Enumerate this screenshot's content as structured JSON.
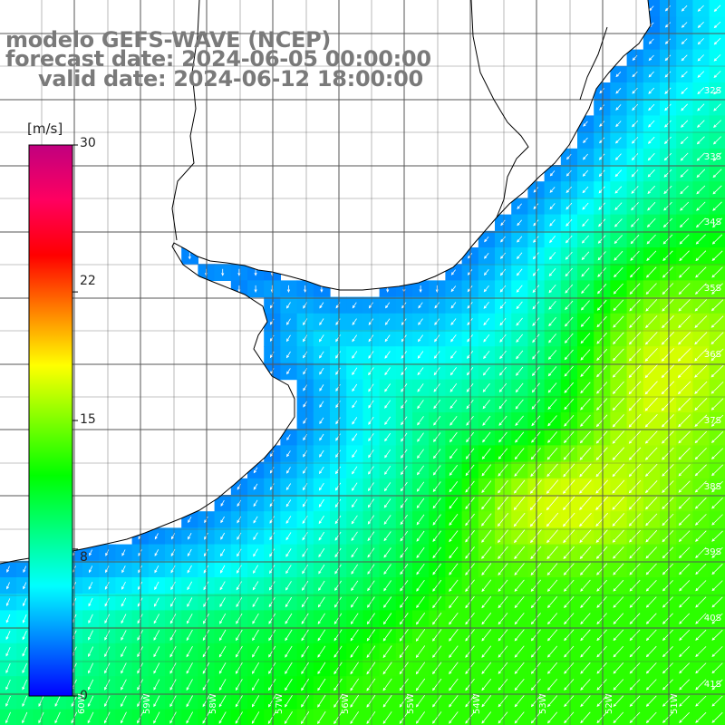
{
  "title": {
    "line1": "modelo GEFS-WAVE (NCEP)",
    "line2": "forecast date: 2024-06-05 00:00:00",
    "line3": "valid date: 2024-06-12 18:00:00"
  },
  "colorbar": {
    "units": "[m/s]",
    "ticks": [
      "30",
      "22",
      "15",
      "8",
      "0"
    ],
    "tick_values": [
      30,
      22,
      15,
      8,
      0
    ],
    "colors": [
      "#0000ff",
      "#0080ff",
      "#00ffff",
      "#00ff80",
      "#00ff00",
      "#80ff00",
      "#ffff00",
      "#ff8000",
      "#ff0000",
      "#ff0060",
      "#c0007f"
    ]
  },
  "lat_labels": [
    "32S",
    "33S",
    "34S",
    "35S",
    "36S",
    "37S",
    "38S",
    "39S",
    "40S",
    "41S"
  ],
  "lon_labels": [
    "60W",
    "59W",
    "58W",
    "57W",
    "56W",
    "55W",
    "54W",
    "53W",
    "52W",
    "51W"
  ],
  "colors": {
    "land": "#ffffff",
    "coastline": "#000000",
    "grid": "#555555",
    "arrows": "#ffffff"
  }
}
